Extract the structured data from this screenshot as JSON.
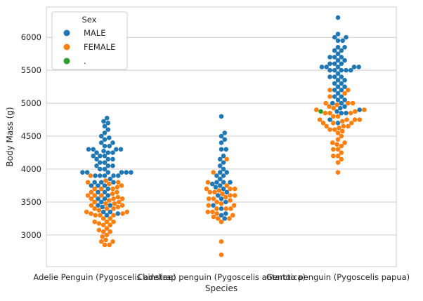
{
  "chart_data": {
    "type": "swarm",
    "title": "",
    "xlabel": "Species",
    "ylabel": "Body Mass (g)",
    "ylim": [
      2520,
      6460
    ],
    "yticks": [
      3000,
      3500,
      4000,
      4500,
      5000,
      5500,
      6000
    ],
    "grid": true,
    "legend": {
      "title": "Sex",
      "placement": "upper-left",
      "entries": [
        {
          "label": "MALE",
          "color": "#1f77b4"
        },
        {
          "label": "FEMALE",
          "color": "#ff7f0e"
        },
        {
          "label": ".",
          "color": "#2ca02c"
        }
      ]
    },
    "categories": [
      {
        "name": "Adelie Penguin (Pygoscelis adeliae)",
        "groups": [
          {
            "sex": "MALE",
            "values": [
              4775,
              4725,
              4700,
              4650,
              4600,
              4550,
              4500,
              4475,
              4450,
              4400,
              4400,
              4350,
              4350,
              4300,
              4300,
              4300,
              4300,
              4275,
              4250,
              4250,
              4250,
              4200,
              4200,
              4200,
              4150,
              4150,
              4150,
              4100,
              4100,
              4050,
              4050,
              4050,
              4000,
              4000,
              3950,
              3950,
              3950,
              3950,
              3950,
              3950,
              3900,
              3900,
              3900,
              3900,
              3900,
              3850,
              3800,
              3800,
              3800,
              3750,
              3750,
              3750,
              3700,
              3650,
              3650,
              3600,
              3550,
              3550,
              3500,
              3450,
              3450,
              3425,
              3350,
              3350,
              3325,
              3300
            ]
          },
          {
            "sex": "FEMALE",
            "values": [
              3900,
              3825,
              3800,
              3800,
              3775,
              3750,
              3725,
              3700,
              3700,
              3700,
              3650,
              3650,
              3625,
              3600,
              3600,
              3600,
              3575,
              3550,
              3550,
              3550,
              3525,
              3500,
              3500,
              3475,
              3475,
              3450,
              3450,
              3425,
              3400,
              3400,
              3400,
              3375,
              3350,
              3350,
              3325,
              3325,
              3300,
              3300,
              3300,
              3250,
              3250,
              3200,
              3200,
              3200,
              3175,
              3150,
              3150,
              3100,
              3075,
              3050,
              3050,
              3000,
              2975,
              2925,
              2900,
              2900,
              2850,
              2850
            ]
          },
          {
            "sex": ".",
            "values": []
          }
        ]
      },
      {
        "name": "Chinstrap penguin (Pygoscelis antarctica)",
        "groups": [
          {
            "sex": "MALE",
            "values": [
              4800,
              4550,
              4500,
              4450,
              4400,
              4300,
              4300,
              4200,
              4150,
              4100,
              4050,
              4000,
              3950,
              3950,
              3900,
              3900,
              3850,
              3800,
              3800,
              3800,
              3775,
              3750,
              3725,
              3700,
              3650,
              3600,
              3550,
              3500,
              3450,
              3400,
              3325,
              3300,
              3250
            ]
          },
          {
            "sex": "FEMALE",
            "values": [
              4150,
              3950,
              3800,
              3750,
              3700,
              3700,
              3700,
              3675,
              3650,
              3650,
              3625,
              3600,
              3600,
              3575,
              3550,
              3550,
              3525,
              3500,
              3475,
              3450,
              3450,
              3400,
              3400,
              3400,
              3350,
              3350,
              3325,
              3300,
              3275,
              3250,
              3250,
              3200,
              2900,
              2700
            ]
          },
          {
            "sex": ".",
            "values": []
          }
        ]
      },
      {
        "name": "Gentoo penguin (Pygoscelis papua)",
        "groups": [
          {
            "sex": "MALE",
            "values": [
              6300,
              6050,
              6000,
              6000,
              5950,
              5950,
              5850,
              5850,
              5800,
              5800,
              5750,
              5700,
              5700,
              5700,
              5650,
              5650,
              5600,
              5600,
              5600,
              5550,
              5550,
              5550,
              5550,
              5550,
              5500,
              5500,
              5500,
              5500,
              5500,
              5450,
              5400,
              5400,
              5400,
              5350,
              5350,
              5300,
              5300,
              5250,
              5250,
              5200,
              5200,
              5150,
              5100,
              5100,
              5050,
              5050,
              5000,
              5000,
              4950,
              4925,
              4900,
              4875,
              4850,
              4850,
              4750,
              4700
            ]
          },
          {
            "sex": "FEMALE",
            "values": [
              5200,
              5200,
              5150,
              5100,
              5000,
              5000,
              5000,
              4975,
              4950,
              4925,
              4900,
              4900,
              4875,
              4850,
              4850,
              4850,
              4800,
              4800,
              4750,
              4750,
              4750,
              4750,
              4725,
              4700,
              4700,
              4700,
              4650,
              4650,
              4650,
              4625,
              4600,
              4600,
              4575,
              4550,
              4500,
              4450,
              4400,
              4400,
              4375,
              4350,
              4300,
              4300,
              4250,
              4200,
              4200,
              4150,
              4100,
              3950
            ]
          },
          {
            "sex": ".",
            "values": [
              4875
            ]
          }
        ]
      }
    ]
  }
}
